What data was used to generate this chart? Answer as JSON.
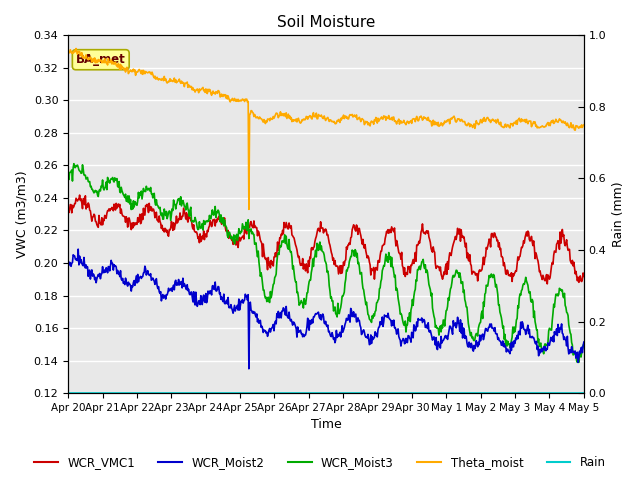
{
  "title": "Soil Moisture",
  "xlabel": "Time",
  "ylabel_left": "VWC (m3/m3)",
  "ylabel_right": "Rain (mm)",
  "ylim_left": [
    0.12,
    0.34
  ],
  "ylim_right": [
    0.0,
    1.0
  ],
  "yticks_left": [
    0.12,
    0.14,
    0.16,
    0.18,
    0.2,
    0.22,
    0.24,
    0.26,
    0.28,
    0.3,
    0.32,
    0.34
  ],
  "yticks_right": [
    0.0,
    0.2,
    0.4,
    0.6,
    0.8,
    1.0
  ],
  "xtick_labels": [
    "Apr 20",
    "Apr 21",
    "Apr 22",
    "Apr 23",
    "Apr 24",
    "Apr 25",
    "Apr 26",
    "Apr 27",
    "Apr 28",
    "Apr 29",
    "Apr 30",
    "May 1",
    "May 2",
    "May 3",
    "May 4",
    "May 5"
  ],
  "bg_color": "#e8e8e8",
  "line_colors": {
    "WCR_VMC1": "#cc0000",
    "WCR_Moist2": "#0000cc",
    "WCR_Moist3": "#00aa00",
    "Theta_moist": "#ffaa00",
    "Rain": "#00cccc"
  },
  "station_label": "BA_met",
  "station_label_color": "#660000",
  "station_box_facecolor": "#ffff99",
  "station_box_edgecolor": "#aaaa00"
}
